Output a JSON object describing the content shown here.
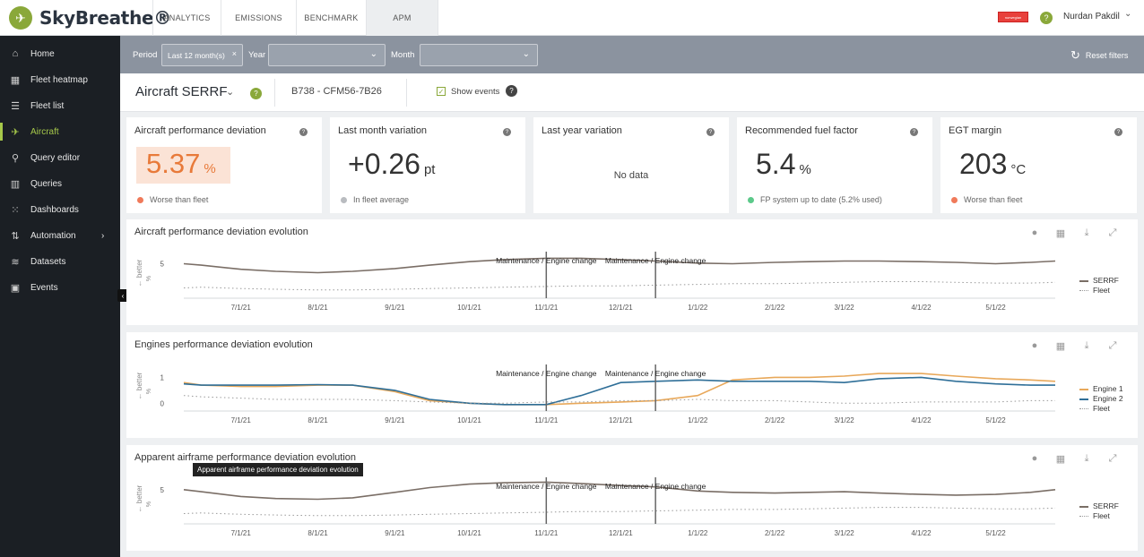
{
  "app": {
    "name": "SkyBreathe®"
  },
  "top_tabs": [
    {
      "label": "ANALYTICS",
      "active": false
    },
    {
      "label": "EMISSIONS",
      "active": false
    },
    {
      "label": "BENCHMARK",
      "active": false
    },
    {
      "label": "APM",
      "active": true
    }
  ],
  "user": {
    "name": "Nurdan Pakdil",
    "flag_label": "norwegian"
  },
  "sidebar": {
    "items": [
      {
        "label": "Home",
        "icon": "home-icon",
        "active": false
      },
      {
        "label": "Fleet heatmap",
        "icon": "grid-icon",
        "active": false
      },
      {
        "label": "Fleet list",
        "icon": "list-icon",
        "active": false
      },
      {
        "label": "Aircraft",
        "icon": "plane-icon",
        "active": true
      },
      {
        "label": "Query editor",
        "icon": "search-icon",
        "active": false
      },
      {
        "label": "Queries",
        "icon": "bar-chart-icon",
        "active": false
      },
      {
        "label": "Dashboards",
        "icon": "dashboard-icon",
        "active": false
      },
      {
        "label": "Automation",
        "icon": "automation-icon",
        "active": false,
        "has_submenu": true
      },
      {
        "label": "Datasets",
        "icon": "database-icon",
        "active": false
      },
      {
        "label": "Events",
        "icon": "calendar-icon",
        "active": false
      }
    ]
  },
  "filters": {
    "period_label": "Period",
    "period_value": "Last 12 month(s)",
    "year_label": "Year",
    "year_value": "",
    "month_label": "Month",
    "month_value": "",
    "reset_label": "Reset filters"
  },
  "aircraft": {
    "title": "Aircraft SERRF",
    "model": "B738 - CFM56-7B26",
    "show_events_label": "Show events",
    "show_events_checked": true
  },
  "kpis": [
    {
      "title": "Aircraft performance deviation",
      "value": "5.37",
      "unit": "%",
      "footer": "Worse than fleet",
      "status_color": "#f07a5a",
      "highlight": true
    },
    {
      "title": "Last month variation",
      "value": "+0.26",
      "unit": "pt",
      "footer": "In fleet average",
      "status_color": "#b9bcc0",
      "highlight": false
    },
    {
      "title": "Last year variation",
      "value": "",
      "unit": "",
      "no_data": "No data",
      "footer": "",
      "highlight": false
    },
    {
      "title": "Recommended fuel factor",
      "value": "5.4",
      "unit": "%",
      "footer": "FP system up to date (5.2% used)",
      "status_color": "#5cc98a",
      "highlight": false
    },
    {
      "title": "EGT margin",
      "value": "203",
      "unit": "°C",
      "footer": "Worse than fleet",
      "status_color": "#f07a5a",
      "highlight": false
    }
  ],
  "panels": [
    {
      "title": "Aircraft performance deviation evolution",
      "ylabel": "← better",
      "yunit": "%",
      "yticks": [
        "5"
      ],
      "events": [
        {
          "label": "Maintenance / Engine change",
          "date": "2021-11-01"
        },
        {
          "label": "Maintenance / Engine change",
          "date": "2021-12-15"
        }
      ],
      "legend": [
        {
          "name": "SERRF",
          "color": "#7a6e66",
          "dash": false
        },
        {
          "name": "Fleet",
          "color": "#999",
          "dash": true
        }
      ]
    },
    {
      "title": "Engines performance deviation evolution",
      "ylabel": "← better",
      "yunit": "%",
      "yticks": [
        "1",
        "0"
      ],
      "events": [
        {
          "label": "Maintenance / Engine change",
          "date": "2021-11-01"
        },
        {
          "label": "Maintenance / Engine change",
          "date": "2021-12-15"
        }
      ],
      "legend": [
        {
          "name": "Engine 1",
          "color": "#e8a85a",
          "dash": false
        },
        {
          "name": "Engine 2",
          "color": "#2f6f98",
          "dash": false
        },
        {
          "name": "Fleet",
          "color": "#999",
          "dash": true
        }
      ]
    },
    {
      "title": "Apparent airframe performance deviation evolution",
      "ylabel": "← better",
      "yunit": "%",
      "yticks": [
        "5"
      ],
      "events": [
        {
          "label": "Maintenance / Engine change",
          "date": "2021-11-01"
        },
        {
          "label": "Maintenance / Engine change",
          "date": "2021-12-15"
        }
      ],
      "legend": [
        {
          "name": "SERRF",
          "color": "#7a6e66",
          "dash": false
        },
        {
          "name": "Fleet",
          "color": "#999",
          "dash": true
        }
      ]
    }
  ],
  "x_ticks": [
    "7/1/21",
    "8/1/21",
    "9/1/21",
    "10/1/21",
    "11/1/21",
    "12/1/21",
    "1/1/22",
    "2/1/22",
    "3/1/22",
    "4/1/22",
    "5/1/22"
  ],
  "tooltip": "Apparent airframe performance deviation evolution",
  "chart_data": [
    {
      "type": "line",
      "title": "Aircraft performance deviation evolution",
      "x": [
        "6/8/21",
        "6/15/21",
        "7/1/21",
        "7/15/21",
        "8/1/21",
        "8/15/21",
        "9/1/21",
        "9/15/21",
        "10/1/21",
        "10/15/21",
        "11/1/21",
        "11/15/21",
        "12/1/21",
        "12/15/21",
        "1/1/22",
        "1/15/22",
        "2/1/22",
        "2/15/22",
        "3/1/22",
        "3/15/22",
        "4/1/22",
        "4/15/22",
        "5/1/22",
        "5/15/22",
        "5/25/22"
      ],
      "series": [
        {
          "name": "SERRF",
          "values": [
            5,
            4.8,
            4.2,
            3.9,
            3.7,
            3.9,
            4.3,
            4.8,
            5.3,
            5.6,
            5.8,
            5.8,
            5.6,
            5.4,
            5.1,
            5.0,
            5.2,
            5.3,
            5.4,
            5.4,
            5.3,
            5.2,
            5.0,
            5.2,
            5.4
          ]
        },
        {
          "name": "Fleet",
          "values": [
            1.5,
            1.6,
            1.4,
            1.3,
            1.2,
            1.2,
            1.3,
            1.4,
            1.5,
            1.6,
            1.7,
            1.8,
            1.8,
            1.9,
            2.0,
            2.1,
            2.1,
            2.2,
            2.3,
            2.4,
            2.4,
            2.3,
            2.2,
            2.2,
            2.3
          ]
        }
      ]
    },
    {
      "type": "line",
      "title": "Engines performance deviation evolution",
      "x": [
        "6/8/21",
        "6/15/21",
        "7/1/21",
        "7/15/21",
        "8/1/21",
        "8/15/21",
        "9/1/21",
        "9/15/21",
        "10/1/21",
        "10/15/21",
        "11/1/21",
        "11/15/21",
        "12/1/21",
        "12/15/21",
        "1/1/22",
        "1/15/22",
        "2/1/22",
        "2/15/22",
        "3/1/22",
        "3/15/22",
        "4/1/22",
        "4/15/22",
        "5/1/22",
        "5/15/22",
        "5/25/22"
      ],
      "series": [
        {
          "name": "Engine 1",
          "values": [
            0.8,
            0.7,
            0.65,
            0.65,
            0.7,
            0.7,
            0.45,
            0.1,
            0.0,
            -0.05,
            -0.05,
            0.0,
            0.05,
            0.1,
            0.3,
            0.9,
            1.0,
            1.0,
            1.05,
            1.15,
            1.15,
            1.05,
            0.95,
            0.9,
            0.85
          ]
        },
        {
          "name": "Engine 2",
          "values": [
            0.75,
            0.7,
            0.7,
            0.7,
            0.72,
            0.7,
            0.5,
            0.15,
            0.0,
            -0.05,
            -0.05,
            0.3,
            0.8,
            0.85,
            0.9,
            0.85,
            0.85,
            0.85,
            0.8,
            0.95,
            1.0,
            0.85,
            0.75,
            0.7,
            0.7
          ]
        },
        {
          "name": "Fleet",
          "values": [
            0.3,
            0.25,
            0.2,
            0.15,
            0.15,
            0.15,
            0.1,
            0.05,
            0.0,
            0.0,
            0.05,
            0.05,
            0.1,
            0.1,
            0.15,
            0.1,
            0.1,
            0.05,
            0.0,
            0.0,
            0.05,
            0.05,
            0.05,
            0.1,
            0.1
          ]
        }
      ]
    },
    {
      "type": "line",
      "title": "Apparent airframe performance deviation evolution",
      "x": [
        "6/8/21",
        "6/15/21",
        "7/1/21",
        "7/15/21",
        "8/1/21",
        "8/15/21",
        "9/1/21",
        "9/15/21",
        "10/1/21",
        "10/15/21",
        "11/1/21",
        "11/15/21",
        "12/1/21",
        "12/15/21",
        "1/1/22",
        "1/15/22",
        "2/1/22",
        "2/15/22",
        "3/1/22",
        "3/15/22",
        "4/1/22",
        "4/15/22",
        "5/1/22",
        "5/15/22",
        "5/25/22"
      ],
      "series": [
        {
          "name": "SERRF",
          "values": [
            5,
            4.7,
            4.0,
            3.7,
            3.6,
            3.8,
            4.6,
            5.3,
            5.8,
            6.0,
            6.1,
            5.9,
            5.6,
            5.4,
            4.8,
            4.6,
            4.5,
            4.6,
            4.7,
            4.5,
            4.3,
            4.2,
            4.3,
            4.6,
            5.0
          ]
        },
        {
          "name": "Fleet",
          "values": [
            1.5,
            1.6,
            1.4,
            1.3,
            1.2,
            1.2,
            1.3,
            1.4,
            1.5,
            1.6,
            1.7,
            1.8,
            1.8,
            1.9,
            2.0,
            2.1,
            2.1,
            2.2,
            2.3,
            2.4,
            2.4,
            2.3,
            2.2,
            2.2,
            2.3
          ]
        }
      ]
    }
  ]
}
